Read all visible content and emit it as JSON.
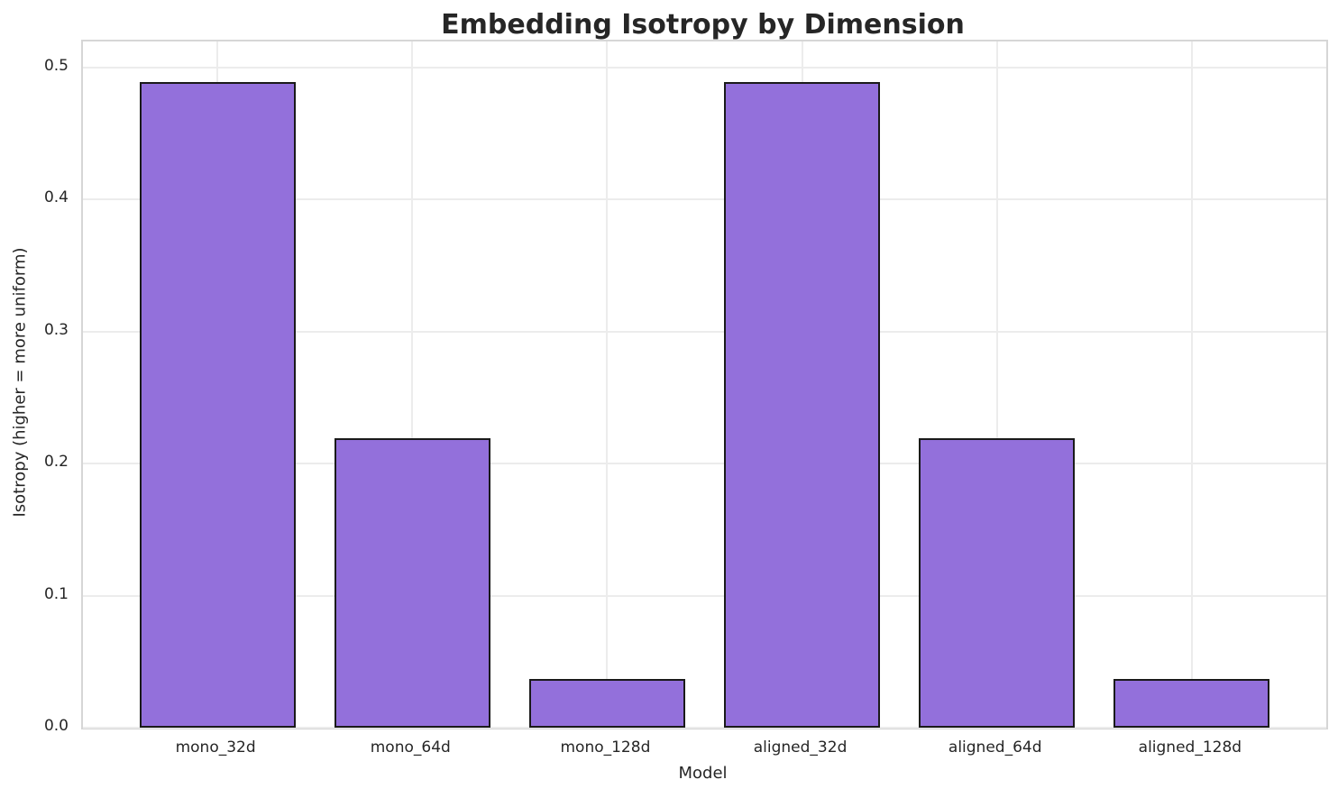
{
  "chart_data": {
    "type": "bar",
    "title": "Embedding Isotropy by Dimension",
    "xlabel": "Model",
    "ylabel": "Isotropy (higher = more uniform)",
    "categories": [
      "mono_32d",
      "mono_64d",
      "mono_128d",
      "aligned_32d",
      "aligned_64d",
      "aligned_128d"
    ],
    "values": [
      0.489,
      0.219,
      0.037,
      0.489,
      0.219,
      0.037
    ],
    "yticks": [
      0.0,
      0.1,
      0.2,
      0.3,
      0.4,
      0.5
    ],
    "ytick_labels": [
      "0.0",
      "0.1",
      "0.2",
      "0.3",
      "0.4",
      "0.5"
    ],
    "ylim": [
      0,
      0.5195
    ],
    "xlim": [
      -0.69,
      5.69
    ],
    "bar_width": 0.8,
    "grid": true,
    "legend": "none",
    "colors": {
      "bar_fill": "#9370DB",
      "bar_edge": "#1a1a1a",
      "grid": "#ececec",
      "spine": "#d6d6d6",
      "text": "#262626"
    }
  }
}
